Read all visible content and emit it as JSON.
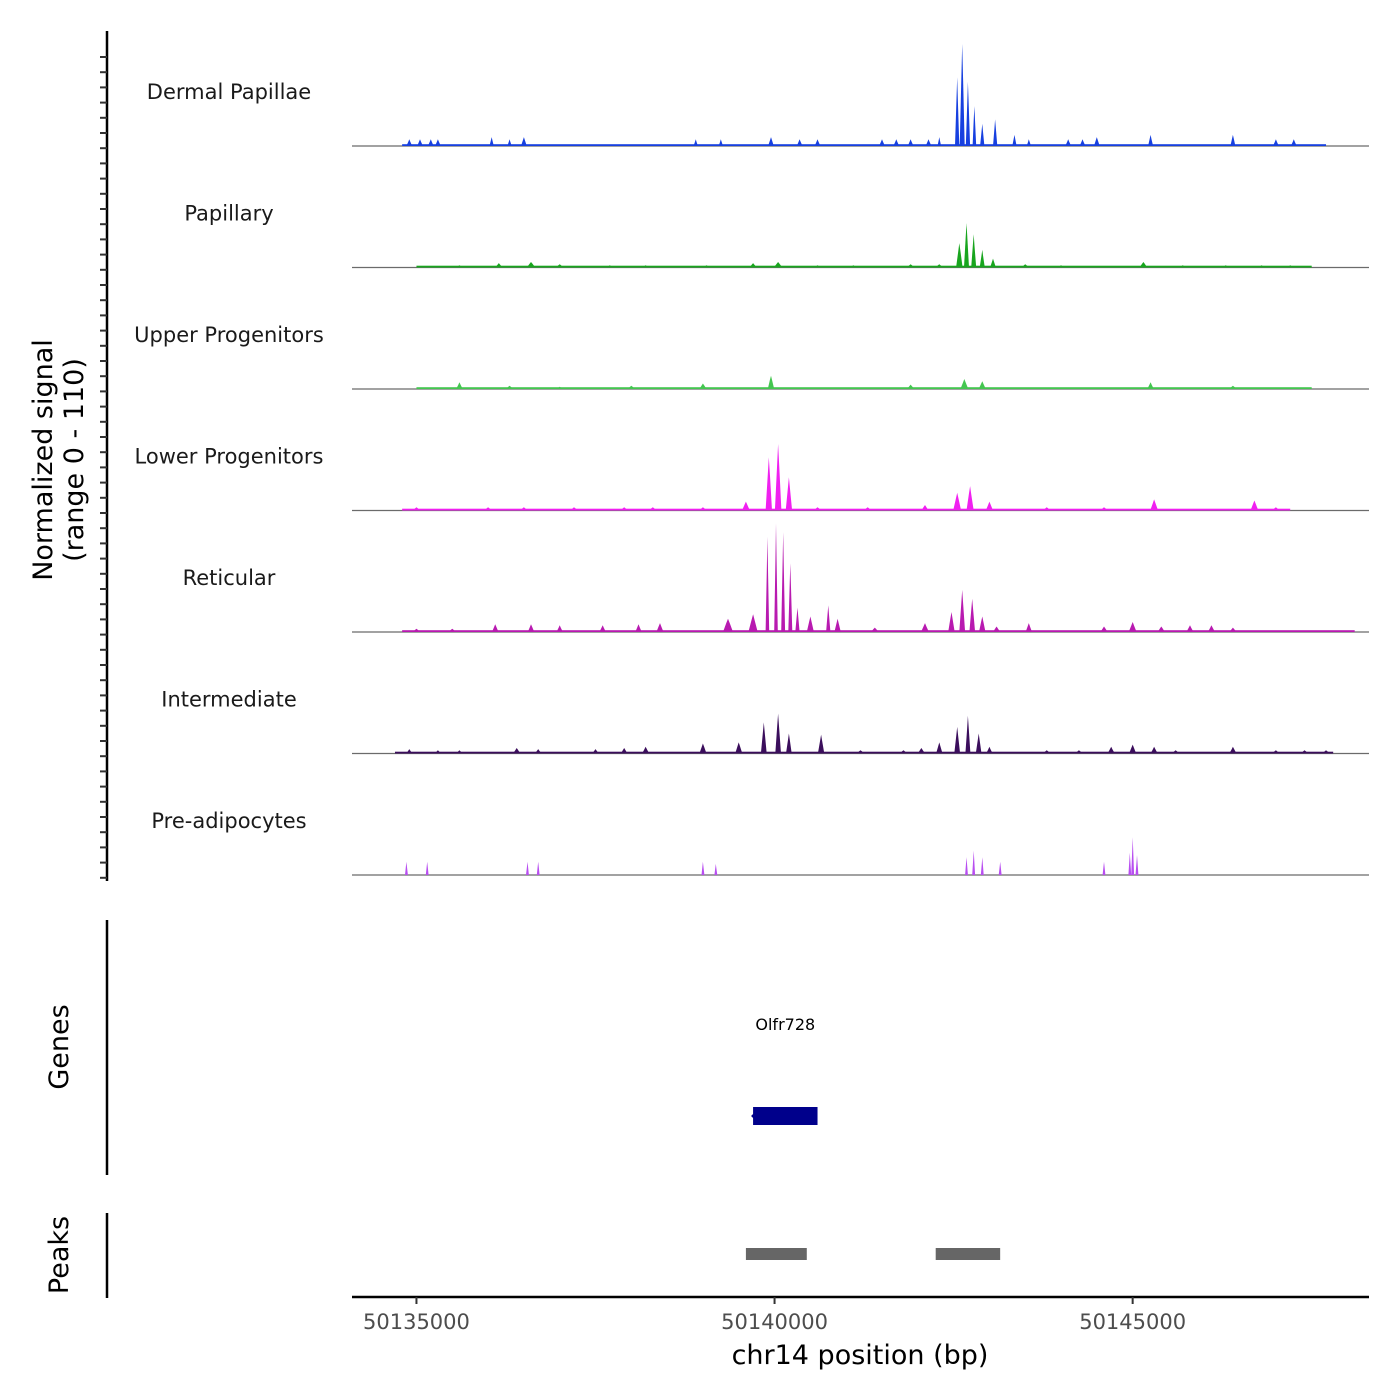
{
  "chart_data": {
    "type": "area",
    "title": "",
    "ylabel": "Normalized signal",
    "ylabel_range": "(range 0 - 110)",
    "ylim": [
      0,
      110
    ],
    "xlabel": "chr14 position (bp)",
    "xlim": [
      50134100,
      50148300
    ],
    "x_ticks": [
      50135000,
      50140000,
      50145000
    ],
    "x_tick_labels": [
      "50135000",
      "50140000",
      "50145000"
    ],
    "series": [
      {
        "name": "Dermal Papillae",
        "color": "#1740e0",
        "baseline": [
          [
            50134800,
            50147700
          ]
        ],
        "peaks": [
          [
            50134900,
            6,
            80
          ],
          [
            50135050,
            6,
            80
          ],
          [
            50135200,
            6,
            80
          ],
          [
            50135300,
            6,
            80
          ],
          [
            50136050,
            8,
            60
          ],
          [
            50136300,
            6,
            60
          ],
          [
            50136500,
            8,
            80
          ],
          [
            50138900,
            6,
            60
          ],
          [
            50139250,
            6,
            60
          ],
          [
            50139950,
            8,
            80
          ],
          [
            50140350,
            6,
            80
          ],
          [
            50140600,
            6,
            80
          ],
          [
            50141500,
            6,
            80
          ],
          [
            50141700,
            6,
            80
          ],
          [
            50141900,
            6,
            80
          ],
          [
            50142150,
            6,
            80
          ],
          [
            50142300,
            8,
            50
          ],
          [
            50142550,
            62,
            60
          ],
          [
            50142620,
            92,
            70
          ],
          [
            50142700,
            58,
            60
          ],
          [
            50142790,
            36,
            50
          ],
          [
            50142900,
            20,
            60
          ],
          [
            50143080,
            24,
            60
          ],
          [
            50143350,
            10,
            60
          ],
          [
            50143550,
            6,
            60
          ],
          [
            50144100,
            6,
            80
          ],
          [
            50144300,
            6,
            80
          ],
          [
            50144500,
            8,
            80
          ],
          [
            50145250,
            10,
            70
          ],
          [
            50146400,
            10,
            70
          ],
          [
            50147000,
            6,
            80
          ],
          [
            50147250,
            6,
            80
          ]
        ]
      },
      {
        "name": "Papillary",
        "color": "#18a51e",
        "baseline": [
          [
            50135000,
            50147500
          ]
        ],
        "peaks": [
          [
            50135600,
            2,
            100
          ],
          [
            50136150,
            4,
            100
          ],
          [
            50136600,
            5,
            120
          ],
          [
            50137000,
            3,
            100
          ],
          [
            50137700,
            2,
            100
          ],
          [
            50138200,
            2,
            100
          ],
          [
            50139050,
            2,
            100
          ],
          [
            50139700,
            4,
            100
          ],
          [
            50140050,
            5,
            120
          ],
          [
            50140600,
            2,
            100
          ],
          [
            50141100,
            2,
            100
          ],
          [
            50141900,
            3,
            100
          ],
          [
            50142300,
            3,
            100
          ],
          [
            50142580,
            22,
            90
          ],
          [
            50142680,
            40,
            70
          ],
          [
            50142780,
            30,
            70
          ],
          [
            50142900,
            16,
            70
          ],
          [
            50143050,
            8,
            80
          ],
          [
            50143500,
            3,
            100
          ],
          [
            50144000,
            2,
            100
          ],
          [
            50145150,
            5,
            110
          ],
          [
            50145700,
            2,
            100
          ],
          [
            50146300,
            2,
            100
          ],
          [
            50146800,
            2,
            100
          ],
          [
            50147200,
            2,
            100
          ]
        ]
      },
      {
        "name": "Upper Progenitors",
        "color": "#44c650",
        "baseline": [
          [
            50135000,
            50147500
          ]
        ],
        "peaks": [
          [
            50135600,
            6,
            90
          ],
          [
            50136300,
            3,
            100
          ],
          [
            50137000,
            2,
            100
          ],
          [
            50138000,
            3,
            100
          ],
          [
            50139000,
            5,
            100
          ],
          [
            50139950,
            12,
            90
          ],
          [
            50141900,
            4,
            100
          ],
          [
            50142650,
            9,
            110
          ],
          [
            50142900,
            7,
            100
          ],
          [
            50145250,
            6,
            90
          ],
          [
            50146400,
            3,
            100
          ]
        ]
      },
      {
        "name": "Lower Progenitors",
        "color": "#f020f0",
        "baseline": [
          [
            50134800,
            50147200
          ]
        ],
        "peaks": [
          [
            50135000,
            3,
            100
          ],
          [
            50136000,
            3,
            100
          ],
          [
            50136500,
            3,
            100
          ],
          [
            50137200,
            3,
            100
          ],
          [
            50137900,
            3,
            100
          ],
          [
            50138300,
            3,
            100
          ],
          [
            50139000,
            3,
            100
          ],
          [
            50139600,
            8,
            110
          ],
          [
            50139920,
            48,
            90
          ],
          [
            50140050,
            60,
            90
          ],
          [
            50140200,
            30,
            90
          ],
          [
            50140600,
            3,
            100
          ],
          [
            50141300,
            3,
            100
          ],
          [
            50142100,
            5,
            100
          ],
          [
            50142550,
            16,
            110
          ],
          [
            50142730,
            22,
            100
          ],
          [
            50143000,
            8,
            100
          ],
          [
            50143800,
            3,
            100
          ],
          [
            50144600,
            3,
            100
          ],
          [
            50145300,
            10,
            110
          ],
          [
            50146700,
            9,
            110
          ],
          [
            50147000,
            3,
            100
          ]
        ]
      },
      {
        "name": "Reticular",
        "color": "#b81ab0",
        "baseline": [
          [
            50134800,
            50148100
          ]
        ],
        "peaks": [
          [
            50135000,
            3,
            100
          ],
          [
            50135500,
            3,
            100
          ],
          [
            50136100,
            7,
            90
          ],
          [
            50136600,
            7,
            90
          ],
          [
            50137000,
            6,
            90
          ],
          [
            50137600,
            6,
            90
          ],
          [
            50138100,
            7,
            90
          ],
          [
            50138400,
            8,
            100
          ],
          [
            50139350,
            12,
            140
          ],
          [
            50139700,
            16,
            130
          ],
          [
            50139900,
            86,
            50
          ],
          [
            50140020,
            98,
            50
          ],
          [
            50140120,
            90,
            55
          ],
          [
            50140220,
            62,
            55
          ],
          [
            50140320,
            22,
            60
          ],
          [
            50140500,
            14,
            100
          ],
          [
            50140750,
            24,
            60
          ],
          [
            50140880,
            12,
            90
          ],
          [
            50141400,
            4,
            110
          ],
          [
            50142100,
            8,
            110
          ],
          [
            50142470,
            18,
            90
          ],
          [
            50142620,
            38,
            80
          ],
          [
            50142760,
            30,
            80
          ],
          [
            50142900,
            14,
            90
          ],
          [
            50143100,
            5,
            100
          ],
          [
            50143550,
            8,
            90
          ],
          [
            50144600,
            5,
            100
          ],
          [
            50145000,
            9,
            110
          ],
          [
            50145400,
            5,
            100
          ],
          [
            50145800,
            6,
            100
          ],
          [
            50146100,
            6,
            100
          ],
          [
            50146400,
            4,
            100
          ]
        ]
      },
      {
        "name": "Intermediate",
        "color": "#3b0e5c",
        "baseline": [
          [
            50134700,
            50147800
          ]
        ],
        "peaks": [
          [
            50134900,
            4,
            80
          ],
          [
            50135300,
            3,
            80
          ],
          [
            50135600,
            3,
            80
          ],
          [
            50136400,
            5,
            100
          ],
          [
            50136700,
            4,
            90
          ],
          [
            50137500,
            4,
            90
          ],
          [
            50137900,
            5,
            90
          ],
          [
            50138200,
            6,
            100
          ],
          [
            50139000,
            9,
            100
          ],
          [
            50139500,
            10,
            100
          ],
          [
            50139850,
            28,
            80
          ],
          [
            50140050,
            36,
            80
          ],
          [
            50140200,
            18,
            80
          ],
          [
            50140650,
            17,
            90
          ],
          [
            50141200,
            3,
            100
          ],
          [
            50141800,
            3,
            100
          ],
          [
            50142050,
            5,
            100
          ],
          [
            50142300,
            10,
            90
          ],
          [
            50142550,
            24,
            80
          ],
          [
            50142700,
            34,
            70
          ],
          [
            50142850,
            18,
            80
          ],
          [
            50143000,
            6,
            90
          ],
          [
            50143800,
            3,
            100
          ],
          [
            50144250,
            3,
            100
          ],
          [
            50144700,
            6,
            100
          ],
          [
            50145000,
            8,
            100
          ],
          [
            50145300,
            6,
            100
          ],
          [
            50145600,
            3,
            100
          ],
          [
            50146400,
            6,
            100
          ],
          [
            50147000,
            3,
            100
          ],
          [
            50147400,
            3,
            100
          ],
          [
            50147700,
            3,
            100
          ]
        ]
      },
      {
        "name": "Pre-adipocytes",
        "color": "#b84ef0",
        "baseline": [],
        "peaks": [
          [
            50134860,
            12,
            40
          ],
          [
            50135150,
            12,
            40
          ],
          [
            50136550,
            12,
            40
          ],
          [
            50136700,
            12,
            40
          ],
          [
            50139000,
            12,
            40
          ],
          [
            50139180,
            10,
            40
          ],
          [
            50142680,
            16,
            40
          ],
          [
            50142780,
            22,
            40
          ],
          [
            50142900,
            16,
            40
          ],
          [
            50143150,
            12,
            40
          ],
          [
            50144600,
            12,
            40
          ],
          [
            50144960,
            20,
            40
          ],
          [
            50145000,
            34,
            40
          ],
          [
            50145060,
            18,
            40
          ]
        ]
      }
    ],
    "genes": [
      {
        "name": "Olfr728",
        "start": 50139700,
        "end": 50140600,
        "color": "#00008b"
      }
    ],
    "peaks_track": [
      {
        "start": 50139600,
        "end": 50140450
      },
      {
        "start": 50142250,
        "end": 50143150
      }
    ],
    "panel_titles": {
      "genes": "Genes",
      "peaks": "Peaks"
    }
  }
}
